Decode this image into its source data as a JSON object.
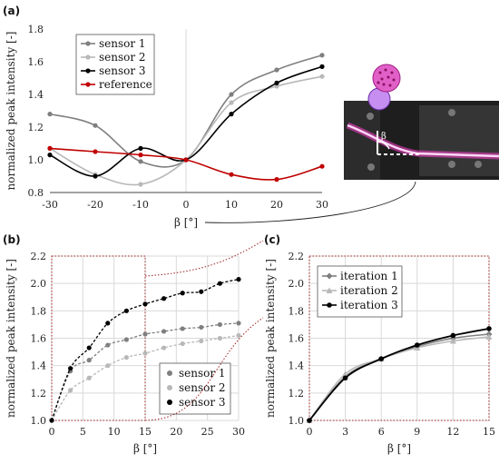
{
  "panels": {
    "a": "(a)",
    "b": "(b)",
    "c": "(c)"
  },
  "colors": {
    "sensor1": "#7f7f7f",
    "sensor2": "#b8b8b8",
    "sensor3": "#000000",
    "reference": "#c00000",
    "photo_bg": "#1e1e1e",
    "fiber": "#ff3fd0",
    "zoom_box": "#a02020"
  },
  "photo": {
    "angle_symbol": "β"
  },
  "chart_data": [
    {
      "id": "a",
      "type": "line",
      "ylabel": "normalized peak intensity [-]",
      "xlabel": "β [°]",
      "xlim": [
        -30,
        30
      ],
      "ylim": [
        0.8,
        1.8
      ],
      "xticks": [
        "-30",
        "-20",
        "-10",
        "0",
        "10",
        "20",
        "30"
      ],
      "yticks": [
        "0.8",
        "1.0",
        "1.2",
        "1.4",
        "1.6",
        "1.8"
      ],
      "grid": "vertical line at x = 0",
      "legend_position": "top-left",
      "x": [
        -30,
        -20,
        -10,
        0,
        10,
        20,
        30
      ],
      "series": [
        {
          "name": "sensor 1",
          "values": [
            1.28,
            1.21,
            0.99,
            1.0,
            1.4,
            1.55,
            1.64
          ]
        },
        {
          "name": "sensor 2",
          "values": [
            1.07,
            0.91,
            0.85,
            1.0,
            1.35,
            1.45,
            1.51
          ]
        },
        {
          "name": "sensor 3",
          "values": [
            1.03,
            0.9,
            1.07,
            1.0,
            1.28,
            1.47,
            1.57
          ]
        },
        {
          "name": "reference",
          "values": [
            1.07,
            1.05,
            1.03,
            1.0,
            0.91,
            0.88,
            0.96
          ]
        }
      ]
    },
    {
      "id": "b",
      "type": "scatter",
      "ylabel": "normalized peak intensity [-]",
      "xlabel": "β [°]",
      "xlim": [
        0,
        30
      ],
      "ylim": [
        1.0,
        2.2
      ],
      "xticks": [
        "0",
        "5",
        "10",
        "15",
        "20",
        "25",
        "30"
      ],
      "yticks": [
        "1.0",
        "1.2",
        "1.4",
        "1.6",
        "1.8",
        "2.0",
        "2.2"
      ],
      "grid": "on",
      "legend_position": "bottom-right",
      "x": [
        0,
        3,
        6,
        9,
        12,
        15,
        18,
        21,
        24,
        27,
        30
      ],
      "series": [
        {
          "name": "sensor 1",
          "values": [
            1.0,
            1.36,
            1.44,
            1.55,
            1.59,
            1.63,
            1.65,
            1.67,
            1.68,
            1.7,
            1.71
          ]
        },
        {
          "name": "sensor 2",
          "values": [
            1.0,
            1.22,
            1.31,
            1.4,
            1.46,
            1.49,
            1.53,
            1.56,
            1.58,
            1.6,
            1.62
          ]
        },
        {
          "name": "sensor 3",
          "values": [
            1.0,
            1.38,
            1.53,
            1.71,
            1.8,
            1.85,
            1.89,
            1.93,
            1.94,
            2.0,
            2.03
          ]
        }
      ]
    },
    {
      "id": "c",
      "type": "line",
      "ylabel": "normalized peak intensity [-]",
      "xlabel": "β [°]",
      "xlim": [
        0,
        15
      ],
      "ylim": [
        1.0,
        2.2
      ],
      "xticks": [
        "0",
        "3",
        "6",
        "9",
        "12",
        "15"
      ],
      "yticks": [
        "1.0",
        "1.2",
        "1.4",
        "1.6",
        "1.8",
        "2.0",
        "2.2"
      ],
      "grid": "on",
      "legend_position": "top-left",
      "x": [
        0,
        3,
        6,
        9,
        12,
        15
      ],
      "series": [
        {
          "name": "iteration 1",
          "values": [
            1.0,
            1.32,
            1.45,
            1.54,
            1.6,
            1.63
          ]
        },
        {
          "name": "iteration 2",
          "values": [
            1.0,
            1.34,
            1.45,
            1.53,
            1.58,
            1.61
          ]
        },
        {
          "name": "iteration 3",
          "values": [
            1.0,
            1.31,
            1.45,
            1.55,
            1.62,
            1.67
          ]
        }
      ]
    }
  ]
}
